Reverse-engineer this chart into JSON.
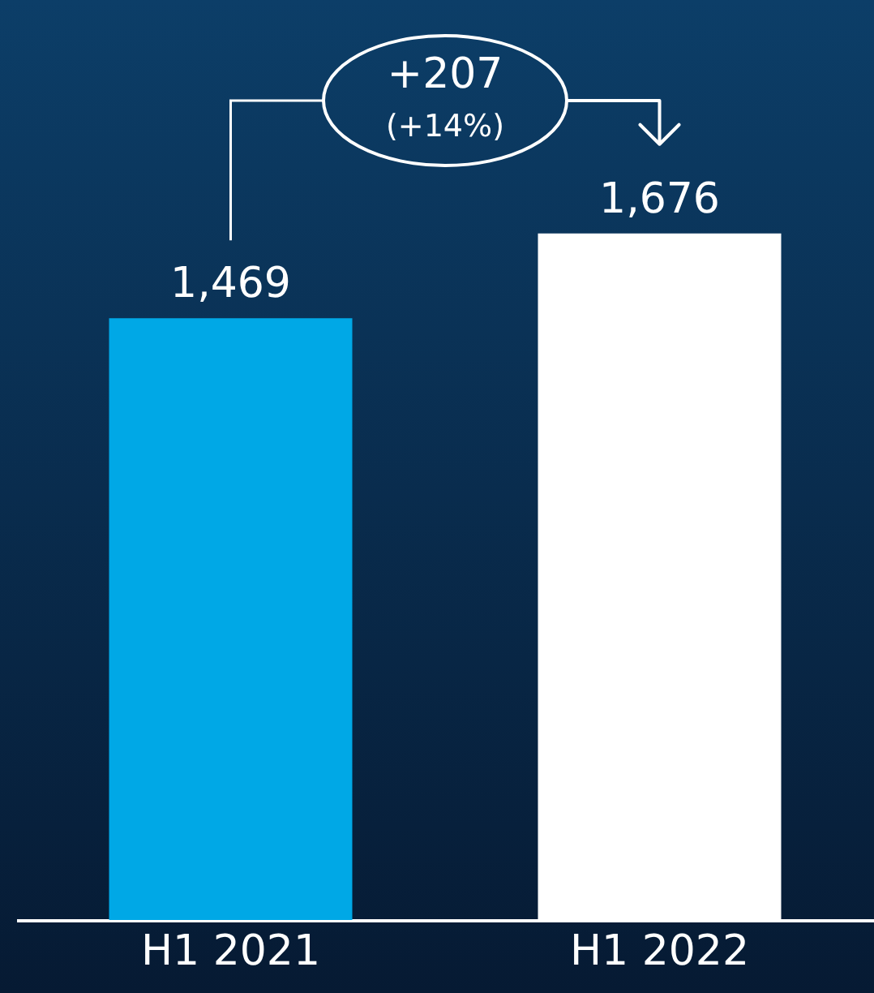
{
  "chart_data": {
    "type": "bar",
    "categories": [
      "H1 2021",
      "H1 2022"
    ],
    "values": [
      1469,
      1676
    ],
    "colors": [
      "#00a8e6",
      "#ffffff"
    ],
    "value_labels": [
      "1,469",
      "1,676"
    ],
    "annotations": [
      "+207",
      "(+14%)"
    ]
  }
}
